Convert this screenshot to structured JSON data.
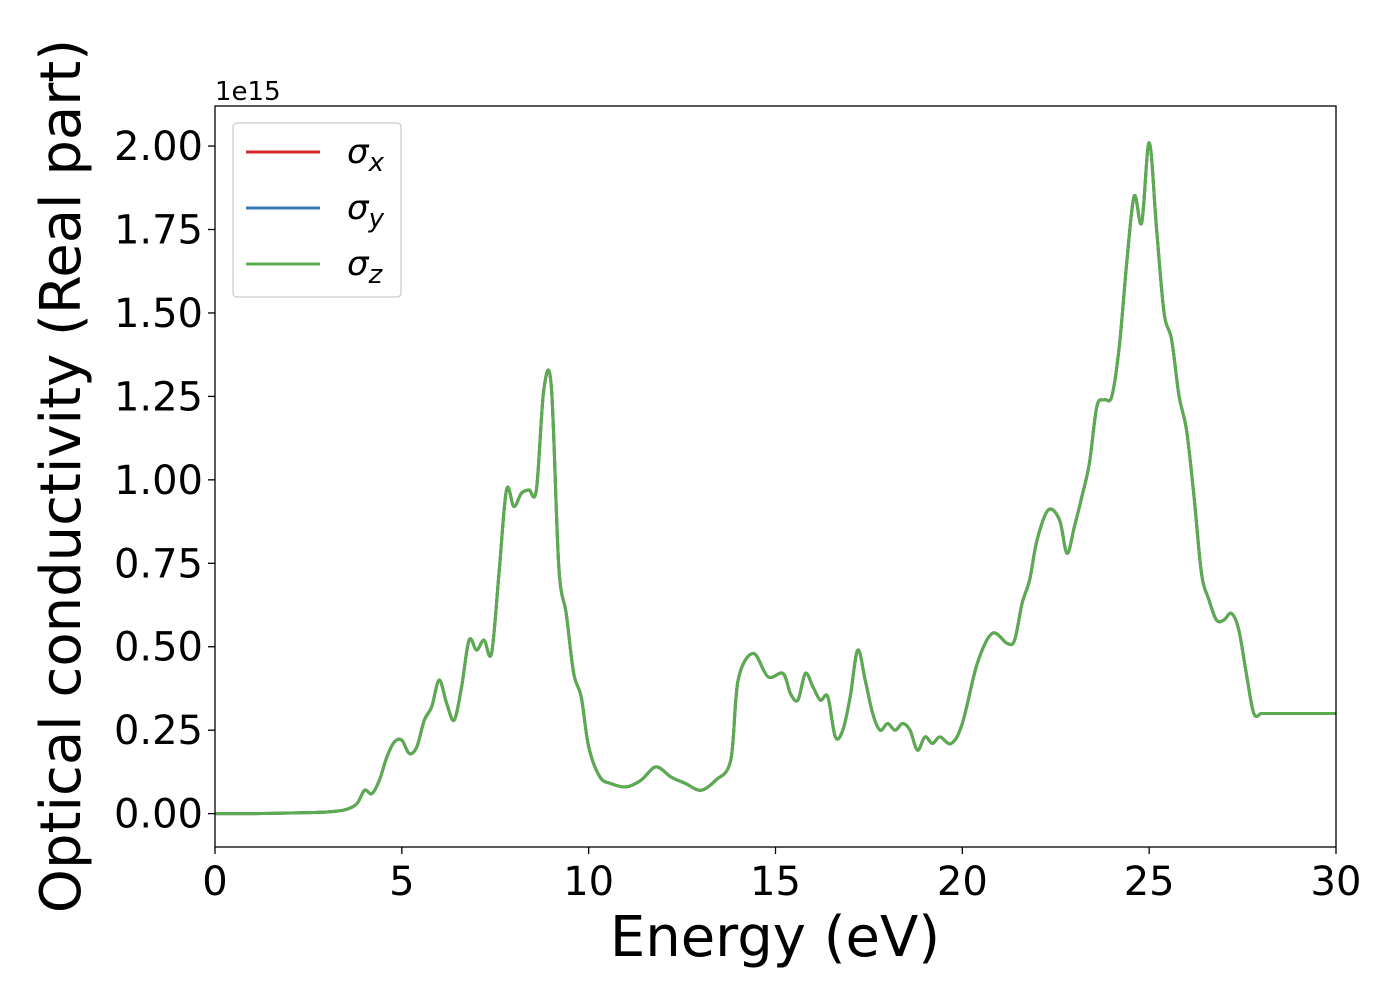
{
  "chart_data": {
    "type": "line",
    "xlabel": "Energy (eV)",
    "ylabel": "Optical conductivity (Real part)",
    "y_offset_label": "1e15",
    "xlim": [
      0,
      30
    ],
    "ylim": [
      -0.1,
      2.12
    ],
    "x_ticks": [
      0,
      5,
      10,
      15,
      20,
      25,
      30
    ],
    "x_tick_labels": [
      "0",
      "5",
      "10",
      "15",
      "20",
      "25",
      "30"
    ],
    "y_ticks": [
      0,
      0.25,
      0.5,
      0.75,
      1.0,
      1.25,
      1.5,
      1.75,
      2.0
    ],
    "y_tick_labels": [
      "0.00",
      "0.25",
      "0.50",
      "0.75",
      "1.00",
      "1.25",
      "1.50",
      "1.75",
      "2.00"
    ],
    "grid": false,
    "legend_position": "top-left",
    "x": [
      0,
      1,
      2,
      3,
      3.5,
      3.8,
      4.0,
      4.2,
      4.4,
      4.6,
      4.8,
      5.0,
      5.2,
      5.4,
      5.6,
      5.8,
      6.0,
      6.2,
      6.4,
      6.6,
      6.8,
      7.0,
      7.2,
      7.4,
      7.6,
      7.8,
      8.0,
      8.2,
      8.4,
      8.6,
      8.8,
      9.0,
      9.2,
      9.4,
      9.6,
      9.8,
      10.0,
      10.3,
      10.6,
      11.0,
      11.4,
      11.8,
      12.2,
      12.6,
      13.0,
      13.4,
      13.8,
      14.0,
      14.4,
      14.8,
      15.2,
      15.4,
      15.6,
      15.8,
      16.0,
      16.2,
      16.4,
      16.6,
      16.8,
      17.0,
      17.2,
      17.4,
      17.6,
      17.8,
      18.0,
      18.2,
      18.4,
      18.6,
      18.8,
      19.0,
      19.2,
      19.4,
      19.7,
      20.0,
      20.4,
      20.8,
      21.2,
      21.4,
      21.6,
      21.8,
      22.0,
      22.3,
      22.6,
      22.8,
      23.0,
      23.2,
      23.4,
      23.6,
      23.8,
      24.0,
      24.2,
      24.4,
      24.6,
      24.8,
      25.0,
      25.2,
      25.4,
      25.6,
      25.8,
      26.0,
      26.2,
      26.4,
      26.6,
      26.8,
      27.0,
      27.2,
      27.4,
      27.6,
      27.8,
      28.0,
      28.2,
      28.4,
      28.6,
      28.8,
      29.0,
      29.2,
      29.4,
      29.6,
      29.8,
      30.0
    ],
    "series": [
      {
        "name": "σx",
        "sub": "x",
        "color": "#d62728",
        "values": [
          0,
          0,
          0.002,
          0.005,
          0.012,
          0.03,
          0.07,
          0.06,
          0.1,
          0.17,
          0.215,
          0.22,
          0.18,
          0.2,
          0.28,
          0.32,
          0.4,
          0.33,
          0.28,
          0.38,
          0.52,
          0.49,
          0.52,
          0.48,
          0.72,
          0.97,
          0.92,
          0.96,
          0.97,
          0.97,
          1.27,
          1.28,
          0.74,
          0.6,
          0.42,
          0.35,
          0.2,
          0.11,
          0.09,
          0.08,
          0.1,
          0.14,
          0.11,
          0.09,
          0.07,
          0.1,
          0.16,
          0.4,
          0.48,
          0.41,
          0.42,
          0.36,
          0.34,
          0.42,
          0.38,
          0.34,
          0.35,
          0.23,
          0.25,
          0.35,
          0.49,
          0.4,
          0.3,
          0.25,
          0.27,
          0.25,
          0.27,
          0.25,
          0.19,
          0.23,
          0.21,
          0.23,
          0.21,
          0.27,
          0.45,
          0.54,
          0.51,
          0.52,
          0.63,
          0.7,
          0.82,
          0.91,
          0.88,
          0.78,
          0.86,
          0.95,
          1.05,
          1.22,
          1.24,
          1.25,
          1.4,
          1.65,
          1.85,
          1.77,
          2.01,
          1.75,
          1.5,
          1.42,
          1.25,
          1.15,
          0.95,
          0.72,
          0.64,
          0.58,
          0.58,
          0.6,
          0.55,
          0.42,
          0.3,
          0.3,
          0.3,
          0.3,
          0.3,
          0.3,
          0.3,
          0.3,
          0.3,
          0.3,
          0.3,
          0.3
        ]
      },
      {
        "name": "σy",
        "sub": "y",
        "color": "#3c7ab6",
        "values": [
          0,
          0,
          0.002,
          0.005,
          0.012,
          0.03,
          0.07,
          0.06,
          0.1,
          0.17,
          0.215,
          0.22,
          0.18,
          0.2,
          0.28,
          0.32,
          0.4,
          0.33,
          0.28,
          0.38,
          0.52,
          0.49,
          0.52,
          0.48,
          0.72,
          0.97,
          0.92,
          0.96,
          0.97,
          0.97,
          1.27,
          1.28,
          0.74,
          0.6,
          0.42,
          0.35,
          0.2,
          0.11,
          0.09,
          0.08,
          0.1,
          0.14,
          0.11,
          0.09,
          0.07,
          0.1,
          0.16,
          0.4,
          0.48,
          0.41,
          0.42,
          0.36,
          0.34,
          0.42,
          0.38,
          0.34,
          0.35,
          0.23,
          0.25,
          0.35,
          0.49,
          0.4,
          0.3,
          0.25,
          0.27,
          0.25,
          0.27,
          0.25,
          0.19,
          0.23,
          0.21,
          0.23,
          0.21,
          0.27,
          0.45,
          0.54,
          0.51,
          0.52,
          0.63,
          0.7,
          0.82,
          0.91,
          0.88,
          0.78,
          0.86,
          0.95,
          1.05,
          1.22,
          1.24,
          1.25,
          1.4,
          1.65,
          1.85,
          1.77,
          2.01,
          1.75,
          1.5,
          1.42,
          1.25,
          1.15,
          0.95,
          0.72,
          0.64,
          0.58,
          0.58,
          0.6,
          0.55,
          0.42,
          0.3,
          0.3,
          0.3,
          0.3,
          0.3,
          0.3,
          0.3,
          0.3,
          0.3,
          0.3,
          0.3,
          0.3
        ]
      },
      {
        "name": "σz",
        "sub": "z",
        "color": "#5aac4f",
        "values": [
          0,
          0,
          0.002,
          0.005,
          0.012,
          0.03,
          0.07,
          0.06,
          0.1,
          0.17,
          0.215,
          0.22,
          0.18,
          0.2,
          0.28,
          0.32,
          0.4,
          0.33,
          0.28,
          0.38,
          0.52,
          0.49,
          0.52,
          0.48,
          0.72,
          0.97,
          0.92,
          0.96,
          0.97,
          0.97,
          1.27,
          1.28,
          0.74,
          0.6,
          0.42,
          0.35,
          0.2,
          0.11,
          0.09,
          0.08,
          0.1,
          0.14,
          0.11,
          0.09,
          0.07,
          0.1,
          0.16,
          0.4,
          0.48,
          0.41,
          0.42,
          0.36,
          0.34,
          0.42,
          0.38,
          0.34,
          0.35,
          0.23,
          0.25,
          0.35,
          0.49,
          0.4,
          0.3,
          0.25,
          0.27,
          0.25,
          0.27,
          0.25,
          0.19,
          0.23,
          0.21,
          0.23,
          0.21,
          0.27,
          0.45,
          0.54,
          0.51,
          0.52,
          0.63,
          0.7,
          0.82,
          0.91,
          0.88,
          0.78,
          0.86,
          0.95,
          1.05,
          1.22,
          1.24,
          1.25,
          1.4,
          1.65,
          1.85,
          1.77,
          2.01,
          1.75,
          1.5,
          1.42,
          1.25,
          1.15,
          0.95,
          0.72,
          0.64,
          0.58,
          0.58,
          0.6,
          0.55,
          0.42,
          0.3,
          0.3,
          0.3,
          0.3,
          0.3,
          0.3,
          0.3,
          0.3,
          0.3,
          0.3,
          0.3,
          0.3
        ]
      }
    ]
  }
}
